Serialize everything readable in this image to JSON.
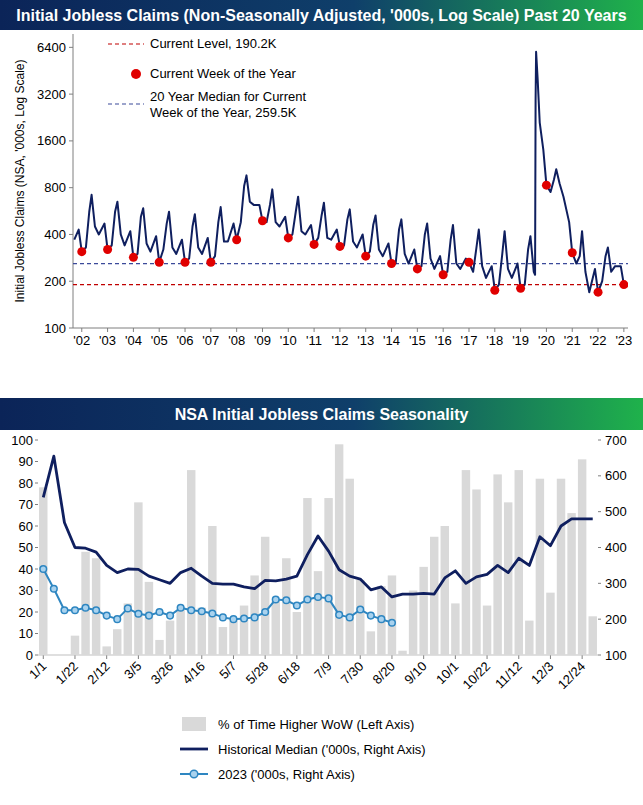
{
  "chart_data": [
    {
      "type": "line",
      "title": "Initial Jobless Claims (Non-Seasonally Adjusted, '000s, Log Scale) Past 20 Years",
      "y_label": "Initial Jobless Claims (NSA, '000s, Log Scale)",
      "log": "y",
      "grid": false,
      "xlim": [
        2002.3,
        2023.8
      ],
      "xticks": [
        {
          "value": 2002.64,
          "label": "'02"
        },
        {
          "value": 2003.64,
          "label": "'03"
        },
        {
          "value": 2004.64,
          "label": "'04"
        },
        {
          "value": 2005.64,
          "label": "'05"
        },
        {
          "value": 2006.64,
          "label": "'06"
        },
        {
          "value": 2007.64,
          "label": "'07"
        },
        {
          "value": 2008.64,
          "label": "'08"
        },
        {
          "value": 2009.64,
          "label": "'09"
        },
        {
          "value": 2010.64,
          "label": "'10"
        },
        {
          "value": 2011.64,
          "label": "'11"
        },
        {
          "value": 2012.64,
          "label": "'12"
        },
        {
          "value": 2013.64,
          "label": "'13"
        },
        {
          "value": 2014.64,
          "label": "'14"
        },
        {
          "value": 2015.64,
          "label": "'15"
        },
        {
          "value": 2016.64,
          "label": "'16"
        },
        {
          "value": 2017.64,
          "label": "'17"
        },
        {
          "value": 2018.64,
          "label": "'18"
        },
        {
          "value": 2019.64,
          "label": "'19"
        },
        {
          "value": 2020.64,
          "label": "'20"
        },
        {
          "value": 2021.64,
          "label": "'21"
        },
        {
          "value": 2022.64,
          "label": "'22"
        },
        {
          "value": 2023.64,
          "label": "'23"
        }
      ],
      "ylim": [
        100,
        7800
      ],
      "yticks": [
        100,
        200,
        400,
        800,
        1600,
        3200,
        6400
      ],
      "x": [
        2002.35,
        2002.52,
        2002.64,
        2002.8,
        2002.93,
        2003.02,
        2003.15,
        2003.3,
        2003.52,
        2003.64,
        2003.8,
        2003.93,
        2004.02,
        2004.15,
        2004.3,
        2004.52,
        2004.64,
        2004.8,
        2004.93,
        2005.02,
        2005.15,
        2005.3,
        2005.52,
        2005.64,
        2005.8,
        2005.93,
        2006.02,
        2006.15,
        2006.3,
        2006.52,
        2006.64,
        2006.8,
        2006.93,
        2007.02,
        2007.15,
        2007.3,
        2007.52,
        2007.64,
        2007.8,
        2007.93,
        2008.02,
        2008.15,
        2008.3,
        2008.52,
        2008.64,
        2008.8,
        2008.93,
        2009.02,
        2009.15,
        2009.3,
        2009.52,
        2009.64,
        2009.8,
        2009.93,
        2010.02,
        2010.15,
        2010.3,
        2010.52,
        2010.64,
        2010.8,
        2010.93,
        2011.02,
        2011.15,
        2011.3,
        2011.52,
        2011.64,
        2011.8,
        2011.93,
        2012.02,
        2012.15,
        2012.3,
        2012.52,
        2012.64,
        2012.8,
        2012.93,
        2013.02,
        2013.15,
        2013.3,
        2013.52,
        2013.64,
        2013.8,
        2013.93,
        2014.02,
        2014.15,
        2014.3,
        2014.52,
        2014.64,
        2014.8,
        2014.93,
        2015.02,
        2015.15,
        2015.3,
        2015.52,
        2015.64,
        2015.8,
        2015.93,
        2016.02,
        2016.15,
        2016.3,
        2016.52,
        2016.64,
        2016.8,
        2016.93,
        2017.02,
        2017.15,
        2017.3,
        2017.52,
        2017.64,
        2017.8,
        2017.93,
        2018.02,
        2018.15,
        2018.3,
        2018.52,
        2018.64,
        2018.8,
        2018.93,
        2019.02,
        2019.15,
        2019.3,
        2019.52,
        2019.64,
        2019.8,
        2019.93,
        2020.02,
        2020.15,
        2020.2,
        2020.22,
        2020.24,
        2020.3,
        2020.38,
        2020.52,
        2020.64,
        2020.8,
        2020.93,
        2021.02,
        2021.15,
        2021.3,
        2021.52,
        2021.64,
        2021.8,
        2021.93,
        2022.02,
        2022.15,
        2022.3,
        2022.52,
        2022.64,
        2022.8,
        2022.93,
        2023.02,
        2023.15,
        2023.3,
        2023.52,
        2023.64
      ],
      "series": [
        {
          "color": "#0f1f5f",
          "values": [
            370,
            430,
            310,
            330,
            560,
            720,
            450,
            400,
            470,
            320,
            340,
            560,
            650,
            400,
            340,
            420,
            285,
            300,
            520,
            590,
            350,
            310,
            390,
            265,
            320,
            470,
            560,
            330,
            300,
            370,
            265,
            280,
            450,
            540,
            330,
            300,
            380,
            265,
            290,
            480,
            600,
            360,
            360,
            470,
            370,
            480,
            820,
            960,
            650,
            620,
            620,
            490,
            480,
            620,
            780,
            480,
            450,
            520,
            380,
            400,
            560,
            700,
            420,
            400,
            460,
            345,
            380,
            530,
            640,
            380,
            370,
            430,
            335,
            340,
            500,
            580,
            360,
            330,
            400,
            290,
            310,
            460,
            530,
            320,
            290,
            350,
            260,
            260,
            430,
            500,
            300,
            260,
            320,
            240,
            250,
            400,
            470,
            280,
            240,
            290,
            220,
            230,
            370,
            460,
            260,
            240,
            280,
            265,
            230,
            330,
            430,
            250,
            210,
            250,
            175,
            190,
            300,
            420,
            240,
            210,
            260,
            180,
            190,
            320,
            390,
            230,
            220,
            2900,
            6000,
            4000,
            2100,
            1400,
            830,
            750,
            900,
            1050,
            850,
            700,
            480,
            305,
            260,
            290,
            420,
            230,
            170,
            240,
            170,
            200,
            290,
            330,
            230,
            250,
            250,
            190.2
          ]
        },
        {
          "name": "Current Week of the Year",
          "type": "scatter",
          "marker": "circle",
          "color": "#e00000",
          "x": [
            2002.64,
            2003.64,
            2004.64,
            2005.64,
            2006.64,
            2007.64,
            2008.64,
            2009.64,
            2010.64,
            2011.64,
            2012.64,
            2013.64,
            2014.64,
            2015.64,
            2016.64,
            2017.64,
            2018.64,
            2019.64,
            2020.64,
            2021.64,
            2022.64,
            2023.64
          ],
          "values": [
            310,
            320,
            285,
            265,
            265,
            265,
            370,
            490,
            380,
            345,
            335,
            290,
            260,
            240,
            220,
            265,
            175,
            180,
            830,
            305,
            170,
            190.2
          ]
        }
      ],
      "reference_lines": [
        {
          "value": 190.2,
          "label_lines": [
            "Current Level, 190.2K"
          ],
          "color": "#c00000",
          "line_style": "dashed"
        },
        {
          "value": 259.5,
          "label_lines": [
            "20 Year Median for Current",
            "Week of the Year, 259.5K"
          ],
          "color": "#3b4a9a",
          "line_style": "dashed"
        }
      ]
    },
    {
      "type": "bar",
      "title": "NSA Initial Jobless Claims Seasonality",
      "grid": false,
      "legend": "bottom",
      "categories": [
        "1/1",
        null,
        null,
        "1/22",
        null,
        null,
        "2/12",
        null,
        null,
        "3/5",
        null,
        null,
        "3/26",
        null,
        null,
        "4/16",
        null,
        null,
        "5/7",
        null,
        null,
        "5/28",
        null,
        null,
        "6/18",
        null,
        null,
        "7/9",
        null,
        null,
        "7/30",
        null,
        null,
        "8/20",
        null,
        null,
        "9/10",
        null,
        null,
        "10/1",
        null,
        null,
        "10/22",
        null,
        null,
        "11/12",
        null,
        null,
        "12/3",
        null,
        null,
        "12/24",
        null
      ],
      "ylim": [
        0,
        100
      ],
      "yticks": [
        0,
        10,
        20,
        30,
        40,
        50,
        60,
        70,
        80,
        90,
        100
      ],
      "y2lim": [
        100,
        700
      ],
      "y2ticks": [
        100,
        200,
        300,
        400,
        500,
        600,
        700
      ],
      "series": [
        {
          "name": "% of Time Higher WoW (Left Axis)",
          "type": "bar",
          "color": "#d9d9d9",
          "values": [
            78,
            0,
            0,
            9,
            48,
            45,
            4,
            12,
            24,
            71,
            34,
            7,
            16,
            21,
            86,
            22,
            60,
            13,
            16,
            23,
            37,
            55,
            25,
            45,
            20,
            73,
            39,
            73,
            98,
            82,
            35,
            11,
            32,
            37,
            2,
            30,
            41,
            55,
            60,
            24,
            86,
            77,
            23,
            84,
            71,
            86,
            16,
            82,
            29,
            82,
            66,
            91,
            18
          ]
        },
        {
          "name": "Historical Median ('000s, Right Axis)",
          "type": "line",
          "axis": "y2",
          "color": "#0f1f5f",
          "values": [
            540,
            655,
            470,
            400,
            398,
            387,
            350,
            330,
            340,
            339,
            320,
            310,
            300,
            330,
            342,
            320,
            300,
            298,
            298,
            290,
            285,
            308,
            307,
            312,
            320,
            380,
            432,
            390,
            338,
            320,
            312,
            282,
            290,
            262,
            270,
            270,
            272,
            270,
            315,
            335,
            300,
            318,
            325,
            350,
            330,
            370,
            350,
            430,
            405,
            460,
            480,
            480,
            480
          ]
        },
        {
          "name": "2023 ('000s, Right Axis)",
          "type": "line",
          "axis": "y2",
          "color": "#2e86c1",
          "marker": "circle",
          "values": [
            340,
            285,
            225,
            225,
            232,
            225,
            210,
            200,
            230,
            215,
            210,
            220,
            210,
            232,
            225,
            222,
            216,
            205,
            200,
            202,
            205,
            220,
            255,
            253,
            238,
            255,
            262,
            258,
            212,
            205,
            227,
            210,
            200,
            190.2,
            null,
            null,
            null,
            null,
            null,
            null,
            null,
            null,
            null,
            null,
            null,
            null,
            null,
            null,
            null,
            null,
            null,
            null,
            null
          ]
        }
      ]
    }
  ]
}
